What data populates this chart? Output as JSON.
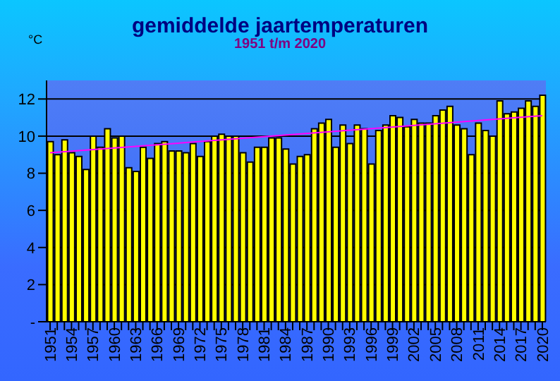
{
  "chart_data": {
    "type": "bar",
    "title": "gemiddelde jaartemperaturen",
    "subtitle": "1951  t/m 2020",
    "ylabel": "°C",
    "categories": [
      "1951",
      null,
      null,
      "1954",
      null,
      null,
      "1957",
      null,
      null,
      "1960",
      null,
      null,
      "1963",
      null,
      null,
      "1966",
      null,
      null,
      "1969",
      null,
      null,
      "1972",
      null,
      null,
      "1975",
      null,
      null,
      "1978",
      null,
      null,
      "1981",
      null,
      null,
      "1984",
      null,
      null,
      "1987",
      null,
      null,
      "1990",
      null,
      null,
      "1993",
      null,
      null,
      "1996",
      null,
      null,
      "1999",
      null,
      null,
      "2002",
      null,
      null,
      "2005",
      null,
      null,
      "2008",
      null,
      null,
      "2011",
      null,
      null,
      "2014",
      null,
      null,
      "2017",
      null,
      null,
      "2020"
    ],
    "series": [
      {
        "color": "#ffff00",
        "values": [
          9.7,
          9.0,
          9.8,
          9.1,
          8.9,
          8.2,
          10.0,
          9.4,
          10.4,
          9.9,
          10.0,
          8.3,
          8.1,
          9.4,
          8.8,
          9.6,
          9.7,
          9.2,
          9.2,
          9.1,
          9.6,
          8.9,
          9.7,
          10.0,
          10.1,
          10.0,
          10.0,
          9.1,
          8.6,
          9.4,
          9.4,
          9.9,
          9.9,
          9.3,
          8.5,
          8.9,
          9.0,
          10.4,
          10.7,
          10.9,
          9.4,
          10.6,
          9.6,
          10.6,
          10.4,
          8.5,
          10.3,
          10.6,
          11.1,
          11.0,
          10.5,
          10.9,
          10.7,
          10.7,
          11.1,
          11.4,
          11.6,
          10.6,
          10.4,
          9.0,
          10.7,
          10.3,
          10.0,
          11.9,
          11.2,
          11.3,
          11.5,
          11.9,
          11.6,
          12.2
        ]
      },
      {
        "type": "line",
        "color": "#ff00ff",
        "values": [
          9.1,
          null,
          null,
          null,
          null,
          null,
          null,
          null,
          null,
          null,
          null,
          null,
          null,
          null,
          null,
          null,
          null,
          null,
          null,
          null,
          null,
          null,
          null,
          null,
          null,
          null,
          null,
          null,
          null,
          null,
          null,
          null,
          null,
          null,
          null,
          null,
          null,
          null,
          null,
          null,
          null,
          null,
          null,
          null,
          null,
          null,
          null,
          null,
          null,
          null,
          null,
          null,
          null,
          null,
          null,
          null,
          null,
          null,
          null,
          null,
          null,
          null,
          null,
          null,
          null,
          null,
          null,
          null,
          null,
          11.1
        ]
      }
    ],
    "ylim": [
      0,
      13
    ],
    "yticks": [
      {
        "value": 0,
        "label": "-"
      },
      2,
      4,
      6,
      8,
      10,
      12
    ],
    "grid": "y"
  }
}
